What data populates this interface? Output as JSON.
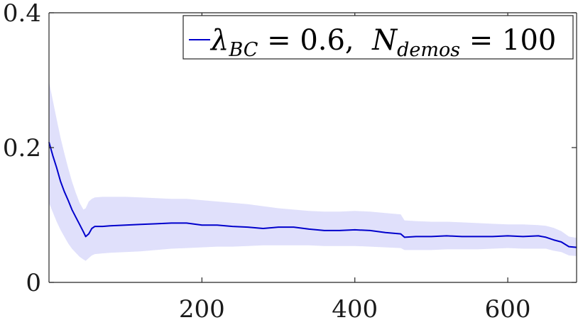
{
  "chart_data": {
    "type": "line",
    "title": "",
    "xlabel": "",
    "ylabel": "",
    "xlim": [
      0,
      690
    ],
    "ylim": [
      0,
      0.4
    ],
    "x_ticks": [
      200,
      400,
      600
    ],
    "x_tick_labels": [
      "200",
      "400",
      "600"
    ],
    "y_ticks": [
      0,
      0.2,
      0.4
    ],
    "y_tick_labels": [
      "0",
      "0.2",
      "0.4"
    ],
    "grid": false,
    "legend_position": "top-right",
    "colors": {
      "line": "#0000cc",
      "band": "#e0e0fb",
      "axis": "#262626"
    },
    "legend": {
      "symbol": "λ",
      "symbol_sub": "BC",
      "eq1": " = 0.6,  ",
      "n": "N",
      "n_sub": "demos",
      "eq2": " = 100"
    },
    "series": [
      {
        "x": [
          0,
          5,
          10,
          15,
          20,
          25,
          30,
          35,
          40,
          45,
          48,
          52,
          56,
          60,
          70,
          80,
          100,
          120,
          140,
          160,
          180,
          200,
          220,
          240,
          260,
          280,
          300,
          320,
          340,
          360,
          380,
          400,
          420,
          440,
          460,
          465,
          480,
          500,
          520,
          540,
          560,
          580,
          600,
          620,
          640,
          650,
          660,
          670,
          680,
          690
        ],
        "mean": [
          0.208,
          0.188,
          0.17,
          0.15,
          0.135,
          0.122,
          0.108,
          0.097,
          0.086,
          0.075,
          0.068,
          0.072,
          0.08,
          0.083,
          0.083,
          0.084,
          0.085,
          0.086,
          0.087,
          0.088,
          0.088,
          0.085,
          0.085,
          0.083,
          0.082,
          0.08,
          0.082,
          0.082,
          0.079,
          0.077,
          0.077,
          0.078,
          0.077,
          0.074,
          0.072,
          0.067,
          0.068,
          0.068,
          0.069,
          0.068,
          0.068,
          0.068,
          0.069,
          0.068,
          0.069,
          0.067,
          0.063,
          0.06,
          0.053,
          0.052
        ],
        "upper": [
          0.298,
          0.27,
          0.242,
          0.215,
          0.192,
          0.17,
          0.15,
          0.133,
          0.118,
          0.108,
          0.11,
          0.12,
          0.124,
          0.126,
          0.127,
          0.127,
          0.127,
          0.126,
          0.125,
          0.124,
          0.124,
          0.122,
          0.12,
          0.118,
          0.116,
          0.113,
          0.11,
          0.108,
          0.106,
          0.105,
          0.105,
          0.106,
          0.105,
          0.103,
          0.101,
          0.092,
          0.091,
          0.09,
          0.09,
          0.089,
          0.088,
          0.087,
          0.086,
          0.086,
          0.085,
          0.084,
          0.081,
          0.076,
          0.068,
          0.066
        ],
        "lower": [
          0.118,
          0.104,
          0.09,
          0.078,
          0.068,
          0.058,
          0.05,
          0.044,
          0.038,
          0.034,
          0.032,
          0.036,
          0.04,
          0.042,
          0.043,
          0.044,
          0.045,
          0.046,
          0.048,
          0.05,
          0.051,
          0.052,
          0.053,
          0.053,
          0.054,
          0.055,
          0.055,
          0.055,
          0.055,
          0.054,
          0.054,
          0.054,
          0.053,
          0.052,
          0.051,
          0.048,
          0.048,
          0.048,
          0.049,
          0.049,
          0.049,
          0.05,
          0.051,
          0.05,
          0.05,
          0.05,
          0.047,
          0.045,
          0.04,
          0.039
        ]
      }
    ]
  }
}
